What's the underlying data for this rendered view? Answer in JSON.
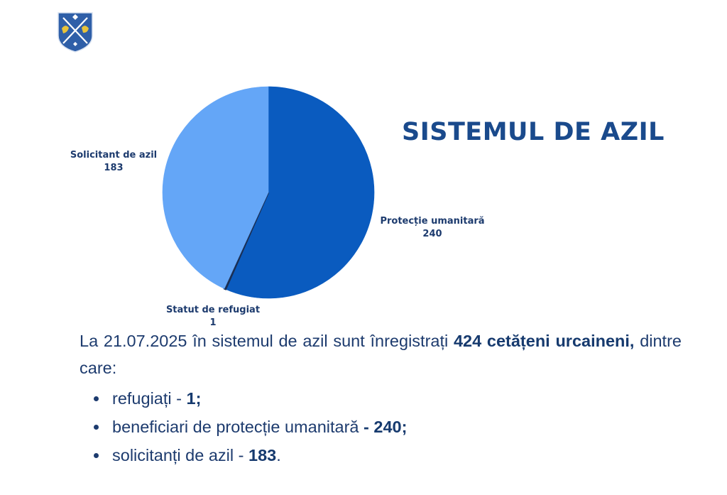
{
  "logo": {
    "icon": "coat-of-arms-icon",
    "colors": {
      "shield": "#2f5fa8",
      "charge": "#e8c33a",
      "cross": "#ffffff"
    }
  },
  "title": "SISTEMUL DE AZIL",
  "chart_data": {
    "type": "pie",
    "title": "",
    "slices": [
      {
        "name": "Protecție umanitară",
        "value": 240,
        "color": "#0a5bbf"
      },
      {
        "name": "Statut de refugiat",
        "value": 1,
        "color": "#1a2f55"
      },
      {
        "name": "Solicitant de azil",
        "value": 183,
        "color": "#64a6f7"
      }
    ]
  },
  "summary": {
    "intro_prefix": "La 21.07.2025 în sistemul de azil sunt înregistrați ",
    "intro_bold": "424 cetățeni urcaineni,",
    "intro_suffix": " dintre care:",
    "bullets": [
      {
        "text": "refugiați - ",
        "bold": "1;"
      },
      {
        "text": "beneficiari de protecție umanitară ",
        "bold": "- 240;"
      },
      {
        "text": "solicitanți de azil - ",
        "bold": "183",
        "tail": "."
      }
    ]
  },
  "colors": {
    "title": "#1a4a8c",
    "text": "#1d3b6e",
    "background": "#ffffff"
  }
}
